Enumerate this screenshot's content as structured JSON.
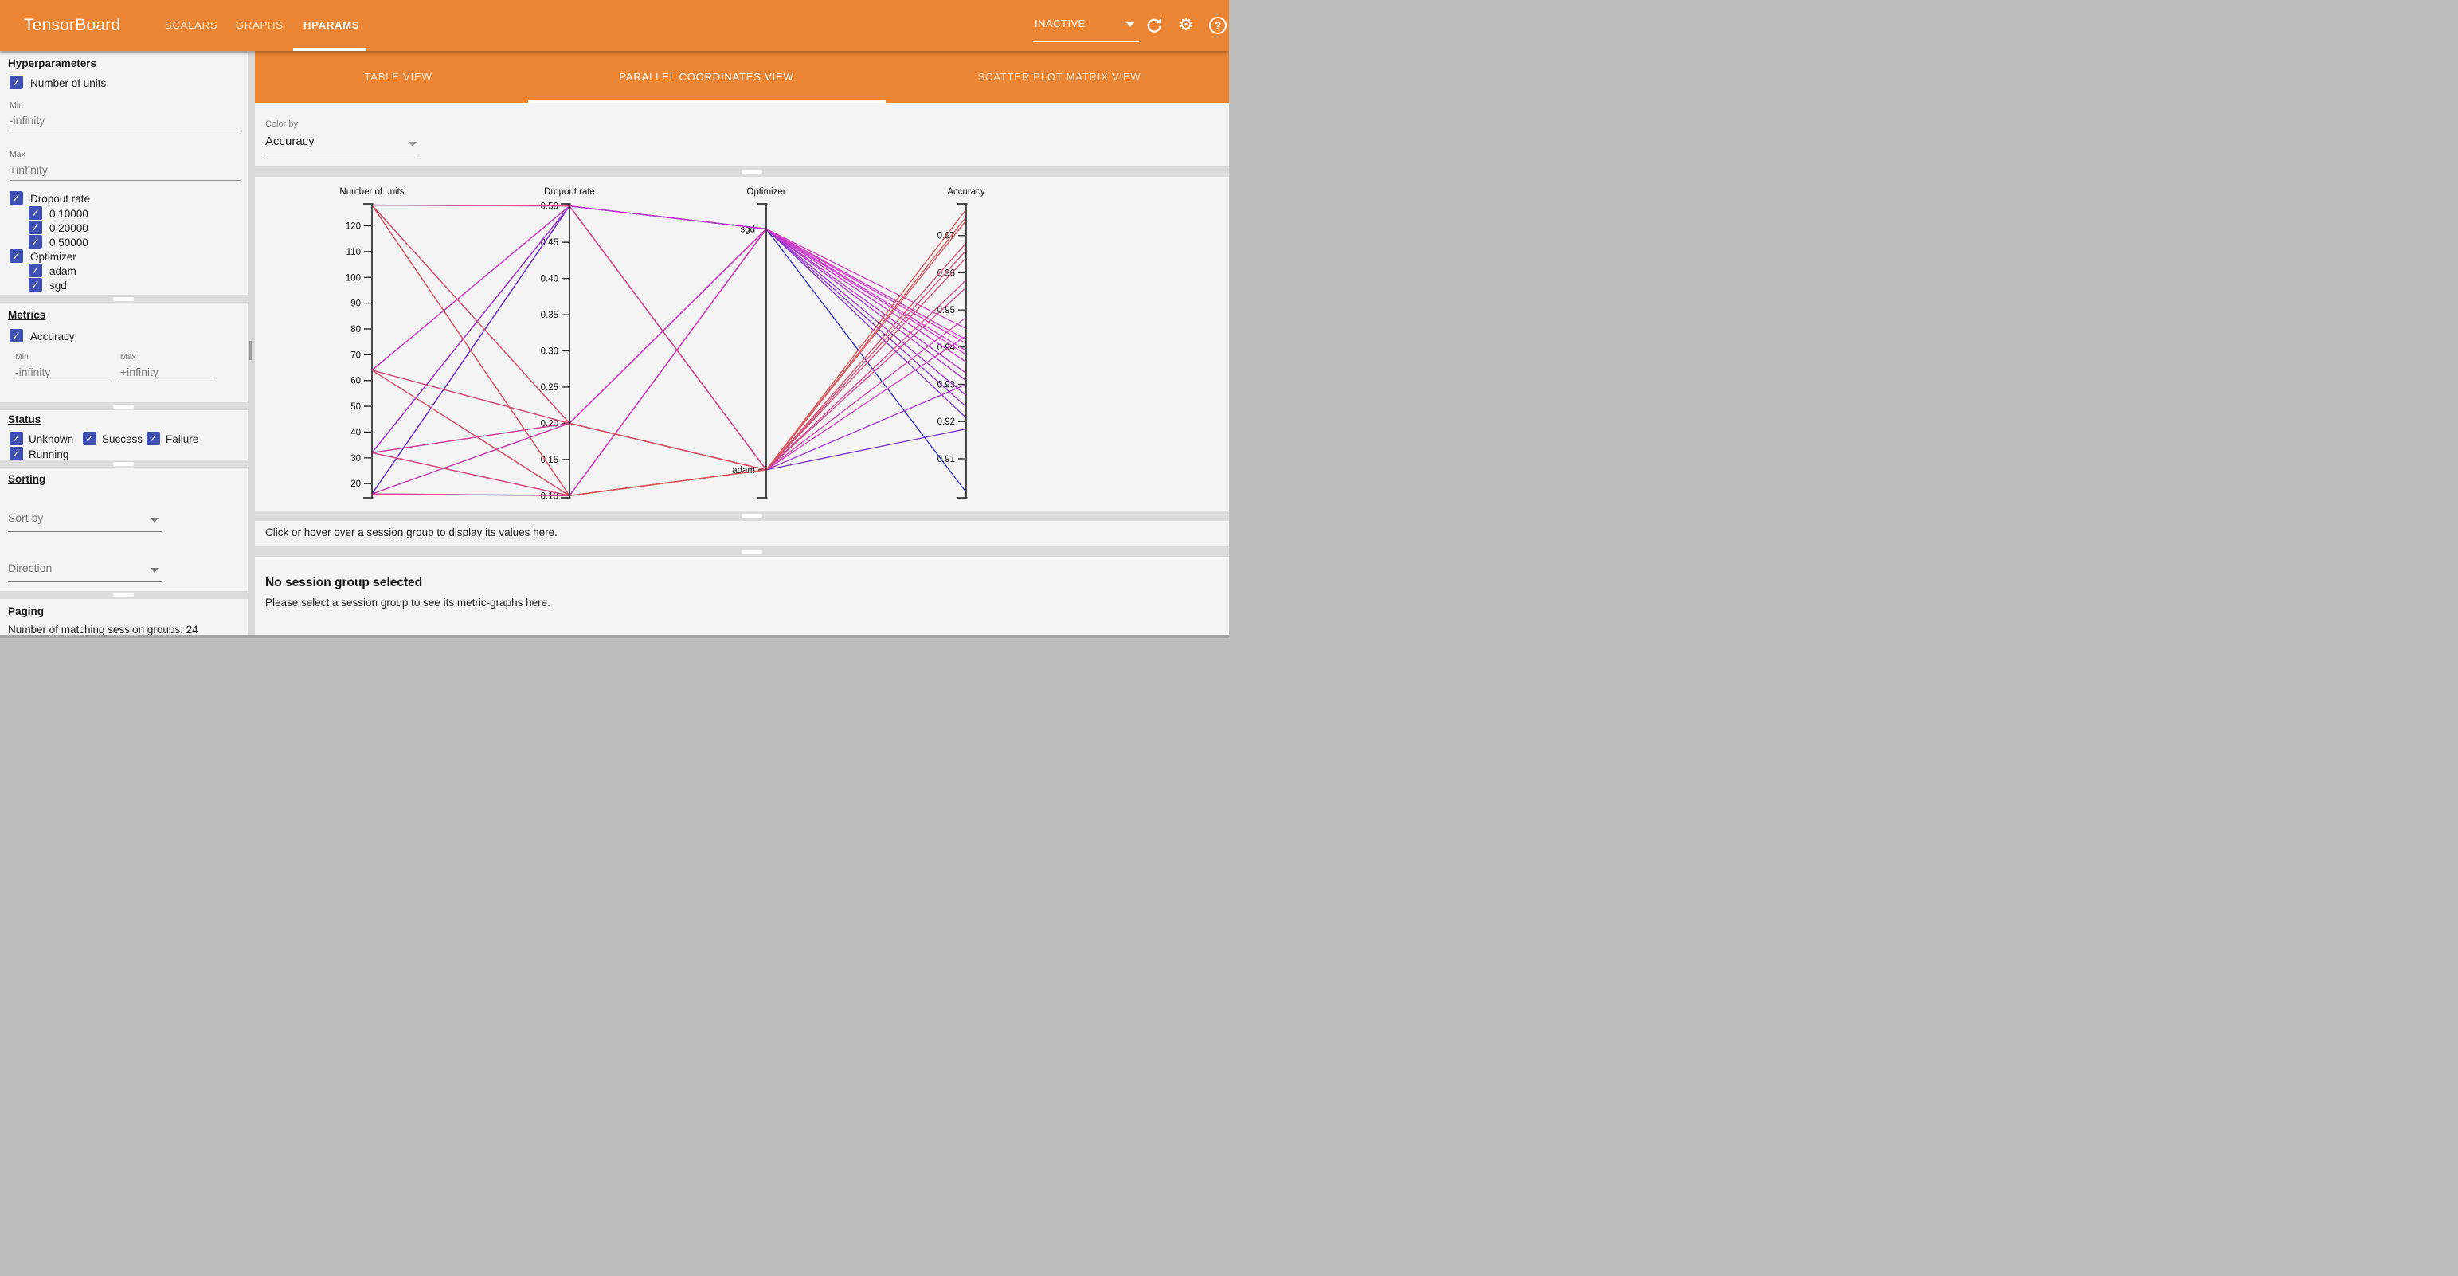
{
  "header": {
    "logo": "TensorBoard",
    "nav_tabs": [
      {
        "label": "SCALARS",
        "active": false
      },
      {
        "label": "GRAPHS",
        "active": false
      },
      {
        "label": "HPARAMS",
        "active": true
      }
    ],
    "status_dropdown": "INACTIVE",
    "icons": [
      "refresh-icon",
      "settings-gear-icon",
      "help-icon"
    ],
    "accent_color": "#ec8533"
  },
  "sidebar": {
    "hyperparameters": {
      "title": "Hyperparameters",
      "items": [
        {
          "label": "Number of units",
          "checked": true,
          "min_label": "Min",
          "min_value": "-infinity",
          "max_label": "Max",
          "max_value": "+infinity"
        },
        {
          "label": "Dropout rate",
          "checked": true,
          "options": [
            "0.10000",
            "0.20000",
            "0.50000"
          ]
        },
        {
          "label": "Optimizer",
          "checked": true,
          "options": [
            "adam",
            "sgd"
          ]
        }
      ]
    },
    "metrics": {
      "title": "Metrics",
      "items": [
        {
          "label": "Accuracy",
          "checked": true,
          "min_label": "Min",
          "min_value": "-infinity",
          "max_label": "Max",
          "max_value": "+infinity"
        }
      ]
    },
    "status": {
      "title": "Status",
      "options": [
        {
          "label": "Unknown",
          "checked": true
        },
        {
          "label": "Success",
          "checked": true
        },
        {
          "label": "Failure",
          "checked": true
        },
        {
          "label": "Running",
          "checked": true
        }
      ]
    },
    "sorting": {
      "title": "Sorting",
      "sort_by_placeholder": "Sort by",
      "direction_placeholder": "Direction"
    },
    "paging": {
      "title": "Paging",
      "summary": "Number of matching session groups: 24"
    },
    "checkbox_color": "#3f51b5"
  },
  "main": {
    "view_tabs": [
      {
        "label": "TABLE VIEW",
        "active": false
      },
      {
        "label": "PARALLEL COORDINATES VIEW",
        "active": true
      },
      {
        "label": "SCATTER PLOT MATRIX VIEW",
        "active": false
      }
    ],
    "color_by": {
      "label": "Color by",
      "value": "Accuracy"
    },
    "hover_hint": "Click or hover over a session group to display its values here.",
    "no_selection_title": "No session group selected",
    "no_selection_body": "Please select a session group to see its metric-graphs here."
  },
  "chart_data": {
    "type": "parallel_coordinates",
    "color_by": "Accuracy",
    "legend_position": "none",
    "grid": false,
    "axes": [
      {
        "id": "units",
        "title": "Number of units",
        "kind": "numeric",
        "top": 128.5,
        "bottom": 14.5,
        "ticks": [
          120,
          110,
          100,
          90,
          80,
          70,
          60,
          50,
          40,
          30,
          20
        ],
        "decimals": 0
      },
      {
        "id": "dropout",
        "title": "Dropout rate",
        "kind": "numeric",
        "top": 0.503,
        "bottom": 0.097,
        "ticks": [
          0.5,
          0.45,
          0.4,
          0.35,
          0.3,
          0.25,
          0.2,
          0.15,
          0.1
        ],
        "decimals": 2
      },
      {
        "id": "optimizer",
        "title": "Optimizer",
        "kind": "categorical",
        "categories": [
          "sgd",
          "adam"
        ],
        "positions": [
          0.085,
          0.905
        ]
      },
      {
        "id": "accuracy",
        "title": "Accuracy",
        "kind": "numeric",
        "top": 0.9785,
        "bottom": 0.8995,
        "ticks": [
          0.97,
          0.96,
          0.95,
          0.94,
          0.93,
          0.92,
          0.91
        ],
        "decimals": 2
      }
    ],
    "color_scale": {
      "min": 0.901,
      "max": 0.977,
      "low_hue": 240,
      "high_hue": 360
    },
    "sessions": [
      {
        "units": 128,
        "dropout": 0.1,
        "optimizer": "adam",
        "accuracy": 0.977
      },
      {
        "units": 64,
        "dropout": 0.1,
        "optimizer": "adam",
        "accuracy": 0.975
      },
      {
        "units": 128,
        "dropout": 0.2,
        "optimizer": "adam",
        "accuracy": 0.974
      },
      {
        "units": 64,
        "dropout": 0.2,
        "optimizer": "adam",
        "accuracy": 0.968
      },
      {
        "units": 32,
        "dropout": 0.1,
        "optimizer": "adam",
        "accuracy": 0.966
      },
      {
        "units": 128,
        "dropout": 0.5,
        "optimizer": "adam",
        "accuracy": 0.964
      },
      {
        "units": 16,
        "dropout": 0.1,
        "optimizer": "adam",
        "accuracy": 0.958
      },
      {
        "units": 32,
        "dropout": 0.2,
        "optimizer": "adam",
        "accuracy": 0.956
      },
      {
        "units": 16,
        "dropout": 0.2,
        "optimizer": "adam",
        "accuracy": 0.948
      },
      {
        "units": 64,
        "dropout": 0.5,
        "optimizer": "adam",
        "accuracy": 0.943
      },
      {
        "units": 32,
        "dropout": 0.5,
        "optimizer": "adam",
        "accuracy": 0.93
      },
      {
        "units": 16,
        "dropout": 0.5,
        "optimizer": "adam",
        "accuracy": 0.918
      },
      {
        "units": 128,
        "dropout": 0.1,
        "optimizer": "sgd",
        "accuracy": 0.945
      },
      {
        "units": 64,
        "dropout": 0.1,
        "optimizer": "sgd",
        "accuracy": 0.942
      },
      {
        "units": 128,
        "dropout": 0.2,
        "optimizer": "sgd",
        "accuracy": 0.941
      },
      {
        "units": 64,
        "dropout": 0.2,
        "optimizer": "sgd",
        "accuracy": 0.939
      },
      {
        "units": 32,
        "dropout": 0.1,
        "optimizer": "sgd",
        "accuracy": 0.938
      },
      {
        "units": 128,
        "dropout": 0.5,
        "optimizer": "sgd",
        "accuracy": 0.936
      },
      {
        "units": 16,
        "dropout": 0.1,
        "optimizer": "sgd",
        "accuracy": 0.933
      },
      {
        "units": 32,
        "dropout": 0.2,
        "optimizer": "sgd",
        "accuracy": 0.931
      },
      {
        "units": 16,
        "dropout": 0.2,
        "optimizer": "sgd",
        "accuracy": 0.927
      },
      {
        "units": 64,
        "dropout": 0.5,
        "optimizer": "sgd",
        "accuracy": 0.924
      },
      {
        "units": 32,
        "dropout": 0.5,
        "optimizer": "sgd",
        "accuracy": 0.921
      },
      {
        "units": 16,
        "dropout": 0.5,
        "optimizer": "sgd",
        "accuracy": 0.901
      }
    ]
  }
}
